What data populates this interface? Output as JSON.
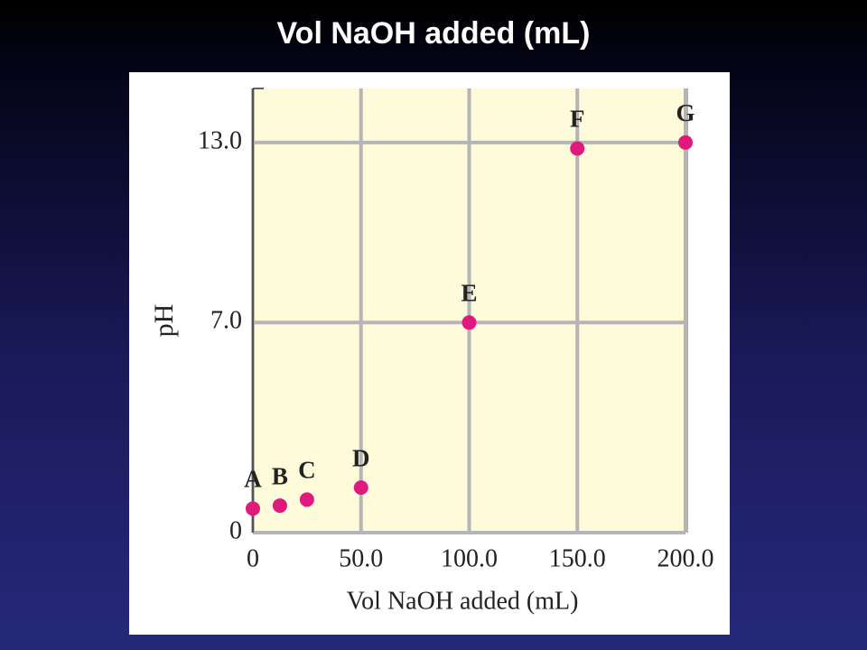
{
  "chart_data": {
    "type": "scatter",
    "title": "Vol NaOH added (mL)",
    "x_label": "Vol NaOH added (mL)",
    "y_label": "pH",
    "x": [
      0,
      12.5,
      25,
      50,
      100,
      150,
      200
    ],
    "values": [
      0.8,
      0.9,
      1.1,
      1.5,
      7.0,
      12.8,
      13.0
    ],
    "point_labels": [
      "A",
      "B",
      "C",
      "D",
      "E",
      "F",
      "G"
    ],
    "color": "#e0197d",
    "xlim": [
      0,
      200
    ],
    "xticks": [
      0,
      {
        "value": 50,
        "label": "50.0"
      },
      {
        "value": 100,
        "label": "100.0"
      },
      {
        "value": 150,
        "label": "150.0"
      },
      {
        "value": 200,
        "label": "200.0"
      }
    ],
    "ylim": [
      0,
      14.8
    ],
    "yticks": [
      0,
      {
        "value": 7,
        "label": "7.0"
      },
      {
        "value": 13,
        "label": "13.0"
      }
    ],
    "grid": true
  }
}
